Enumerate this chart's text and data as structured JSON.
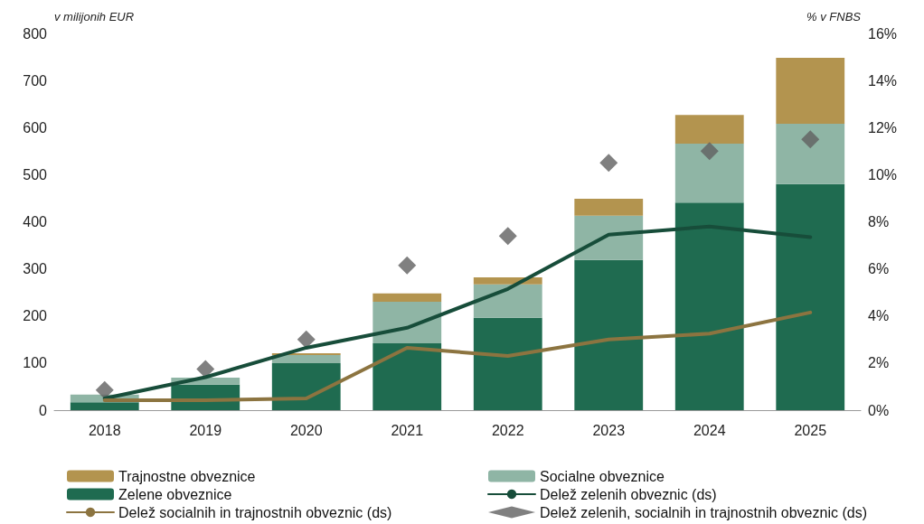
{
  "chart_data": {
    "type": "bar",
    "stacked": true,
    "categories": [
      "2018",
      "2019",
      "2020",
      "2021",
      "2022",
      "2023",
      "2024",
      "2025"
    ],
    "ylabel": "v milijonih EUR",
    "y2label": "% v FNBS",
    "ylim": [
      0,
      800
    ],
    "yticks": [
      0,
      100,
      200,
      300,
      400,
      500,
      600,
      700,
      800
    ],
    "y2lim": [
      0,
      16
    ],
    "y2ticks": [
      {
        "value": 0,
        "label": "0%"
      },
      {
        "value": 2,
        "label": "2%"
      },
      {
        "value": 4,
        "label": "4%"
      },
      {
        "value": 6,
        "label": "6%"
      },
      {
        "value": 8,
        "label": "8%"
      },
      {
        "value": 10,
        "label": "10%"
      },
      {
        "value": 12,
        "label": "12%"
      },
      {
        "value": 14,
        "label": "14%"
      },
      {
        "value": 16,
        "label": "16%"
      }
    ],
    "grid": false,
    "legend": "bottom",
    "series": [
      {
        "name": "Zelene obveznice",
        "color": "#1f6b50",
        "values": [
          17,
          54,
          100,
          142,
          196,
          319,
          441,
          480
        ]
      },
      {
        "name": "Socialne obveznice",
        "color": "#8fb5a5",
        "values": [
          16,
          15,
          17,
          88,
          71,
          94,
          125,
          128
        ]
      },
      {
        "name": "Trajnostne obveznice",
        "color": "#b3944f",
        "values": [
          0,
          0,
          4,
          18,
          15,
          36,
          61,
          140
        ]
      },
      {
        "name": "Delež zelenih obveznic (ds)",
        "type": "line",
        "axis": "y2",
        "marker": "none",
        "color": "#174d3a",
        "values": [
          0.5,
          1.4,
          2.65,
          3.5,
          5.15,
          7.45,
          7.8,
          7.35
        ]
      },
      {
        "name": "Delež socialnih in trajnostnih obveznic (ds)",
        "type": "line",
        "axis": "y2",
        "marker": "none",
        "color": "#8c7440",
        "values": [
          0.42,
          0.42,
          0.5,
          2.65,
          2.3,
          3.0,
          3.25,
          4.15
        ]
      },
      {
        "name": "Delež zelenih, socialnih in trajnostnih obveznic (ds)",
        "type": "scatter",
        "axis": "y2",
        "marker": "diamond",
        "color": "#606060",
        "values": [
          0.85,
          1.75,
          3.0,
          6.15,
          7.4,
          10.5,
          11.0,
          11.5
        ]
      }
    ]
  }
}
